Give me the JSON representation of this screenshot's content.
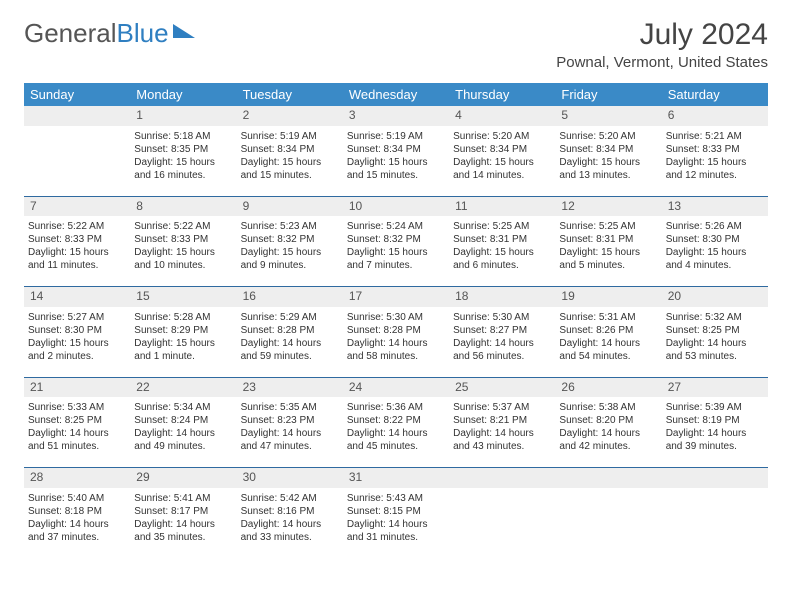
{
  "logo": {
    "text1": "General",
    "text2": "Blue"
  },
  "title": "July 2024",
  "location": "Pownal, Vermont, United States",
  "colors": {
    "header_bg": "#3a8ac7",
    "header_text": "#ffffff",
    "border": "#2f6aa0",
    "daynum_bg": "#eeeeee",
    "body_text": "#333333",
    "logo_gray": "#555555",
    "logo_blue": "#2f7fc1"
  },
  "weekdays": [
    "Sunday",
    "Monday",
    "Tuesday",
    "Wednesday",
    "Thursday",
    "Friday",
    "Saturday"
  ],
  "weeks": [
    {
      "nums": [
        "",
        "1",
        "2",
        "3",
        "4",
        "5",
        "6"
      ],
      "cells": [
        {
          "sunrise": "",
          "sunset": "",
          "daylight": ""
        },
        {
          "sunrise": "Sunrise: 5:18 AM",
          "sunset": "Sunset: 8:35 PM",
          "daylight": "Daylight: 15 hours and 16 minutes."
        },
        {
          "sunrise": "Sunrise: 5:19 AM",
          "sunset": "Sunset: 8:34 PM",
          "daylight": "Daylight: 15 hours and 15 minutes."
        },
        {
          "sunrise": "Sunrise: 5:19 AM",
          "sunset": "Sunset: 8:34 PM",
          "daylight": "Daylight: 15 hours and 15 minutes."
        },
        {
          "sunrise": "Sunrise: 5:20 AM",
          "sunset": "Sunset: 8:34 PM",
          "daylight": "Daylight: 15 hours and 14 minutes."
        },
        {
          "sunrise": "Sunrise: 5:20 AM",
          "sunset": "Sunset: 8:34 PM",
          "daylight": "Daylight: 15 hours and 13 minutes."
        },
        {
          "sunrise": "Sunrise: 5:21 AM",
          "sunset": "Sunset: 8:33 PM",
          "daylight": "Daylight: 15 hours and 12 minutes."
        }
      ]
    },
    {
      "nums": [
        "7",
        "8",
        "9",
        "10",
        "11",
        "12",
        "13"
      ],
      "cells": [
        {
          "sunrise": "Sunrise: 5:22 AM",
          "sunset": "Sunset: 8:33 PM",
          "daylight": "Daylight: 15 hours and 11 minutes."
        },
        {
          "sunrise": "Sunrise: 5:22 AM",
          "sunset": "Sunset: 8:33 PM",
          "daylight": "Daylight: 15 hours and 10 minutes."
        },
        {
          "sunrise": "Sunrise: 5:23 AM",
          "sunset": "Sunset: 8:32 PM",
          "daylight": "Daylight: 15 hours and 9 minutes."
        },
        {
          "sunrise": "Sunrise: 5:24 AM",
          "sunset": "Sunset: 8:32 PM",
          "daylight": "Daylight: 15 hours and 7 minutes."
        },
        {
          "sunrise": "Sunrise: 5:25 AM",
          "sunset": "Sunset: 8:31 PM",
          "daylight": "Daylight: 15 hours and 6 minutes."
        },
        {
          "sunrise": "Sunrise: 5:25 AM",
          "sunset": "Sunset: 8:31 PM",
          "daylight": "Daylight: 15 hours and 5 minutes."
        },
        {
          "sunrise": "Sunrise: 5:26 AM",
          "sunset": "Sunset: 8:30 PM",
          "daylight": "Daylight: 15 hours and 4 minutes."
        }
      ]
    },
    {
      "nums": [
        "14",
        "15",
        "16",
        "17",
        "18",
        "19",
        "20"
      ],
      "cells": [
        {
          "sunrise": "Sunrise: 5:27 AM",
          "sunset": "Sunset: 8:30 PM",
          "daylight": "Daylight: 15 hours and 2 minutes."
        },
        {
          "sunrise": "Sunrise: 5:28 AM",
          "sunset": "Sunset: 8:29 PM",
          "daylight": "Daylight: 15 hours and 1 minute."
        },
        {
          "sunrise": "Sunrise: 5:29 AM",
          "sunset": "Sunset: 8:28 PM",
          "daylight": "Daylight: 14 hours and 59 minutes."
        },
        {
          "sunrise": "Sunrise: 5:30 AM",
          "sunset": "Sunset: 8:28 PM",
          "daylight": "Daylight: 14 hours and 58 minutes."
        },
        {
          "sunrise": "Sunrise: 5:30 AM",
          "sunset": "Sunset: 8:27 PM",
          "daylight": "Daylight: 14 hours and 56 minutes."
        },
        {
          "sunrise": "Sunrise: 5:31 AM",
          "sunset": "Sunset: 8:26 PM",
          "daylight": "Daylight: 14 hours and 54 minutes."
        },
        {
          "sunrise": "Sunrise: 5:32 AM",
          "sunset": "Sunset: 8:25 PM",
          "daylight": "Daylight: 14 hours and 53 minutes."
        }
      ]
    },
    {
      "nums": [
        "21",
        "22",
        "23",
        "24",
        "25",
        "26",
        "27"
      ],
      "cells": [
        {
          "sunrise": "Sunrise: 5:33 AM",
          "sunset": "Sunset: 8:25 PM",
          "daylight": "Daylight: 14 hours and 51 minutes."
        },
        {
          "sunrise": "Sunrise: 5:34 AM",
          "sunset": "Sunset: 8:24 PM",
          "daylight": "Daylight: 14 hours and 49 minutes."
        },
        {
          "sunrise": "Sunrise: 5:35 AM",
          "sunset": "Sunset: 8:23 PM",
          "daylight": "Daylight: 14 hours and 47 minutes."
        },
        {
          "sunrise": "Sunrise: 5:36 AM",
          "sunset": "Sunset: 8:22 PM",
          "daylight": "Daylight: 14 hours and 45 minutes."
        },
        {
          "sunrise": "Sunrise: 5:37 AM",
          "sunset": "Sunset: 8:21 PM",
          "daylight": "Daylight: 14 hours and 43 minutes."
        },
        {
          "sunrise": "Sunrise: 5:38 AM",
          "sunset": "Sunset: 8:20 PM",
          "daylight": "Daylight: 14 hours and 42 minutes."
        },
        {
          "sunrise": "Sunrise: 5:39 AM",
          "sunset": "Sunset: 8:19 PM",
          "daylight": "Daylight: 14 hours and 39 minutes."
        }
      ]
    },
    {
      "nums": [
        "28",
        "29",
        "30",
        "31",
        "",
        "",
        ""
      ],
      "cells": [
        {
          "sunrise": "Sunrise: 5:40 AM",
          "sunset": "Sunset: 8:18 PM",
          "daylight": "Daylight: 14 hours and 37 minutes."
        },
        {
          "sunrise": "Sunrise: 5:41 AM",
          "sunset": "Sunset: 8:17 PM",
          "daylight": "Daylight: 14 hours and 35 minutes."
        },
        {
          "sunrise": "Sunrise: 5:42 AM",
          "sunset": "Sunset: 8:16 PM",
          "daylight": "Daylight: 14 hours and 33 minutes."
        },
        {
          "sunrise": "Sunrise: 5:43 AM",
          "sunset": "Sunset: 8:15 PM",
          "daylight": "Daylight: 14 hours and 31 minutes."
        },
        {
          "sunrise": "",
          "sunset": "",
          "daylight": ""
        },
        {
          "sunrise": "",
          "sunset": "",
          "daylight": ""
        },
        {
          "sunrise": "",
          "sunset": "",
          "daylight": ""
        }
      ]
    }
  ]
}
